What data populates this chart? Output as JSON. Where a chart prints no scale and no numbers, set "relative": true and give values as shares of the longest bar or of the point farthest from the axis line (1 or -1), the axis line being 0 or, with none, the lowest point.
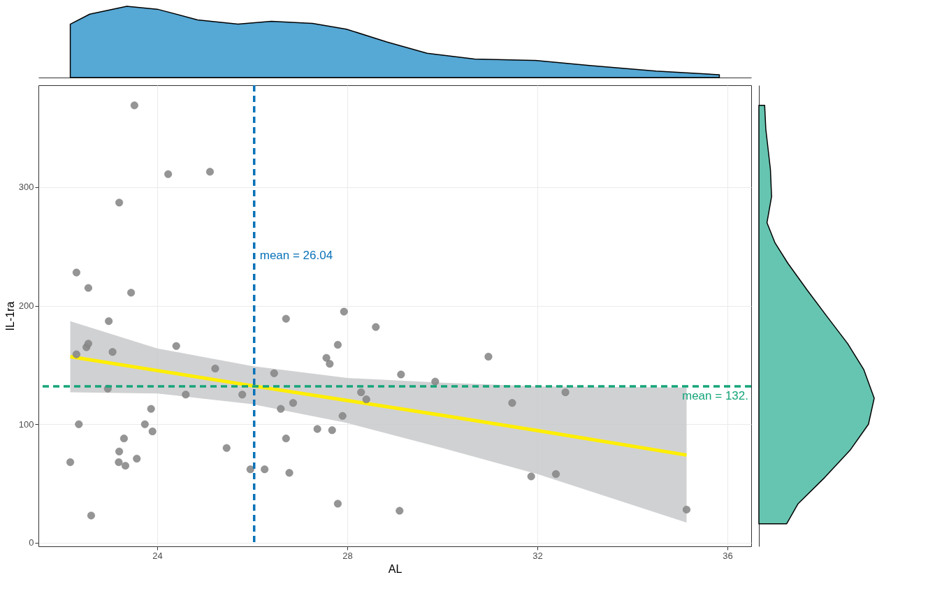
{
  "chart_data": [
    {
      "type": "area",
      "relative": true,
      "color": "#56a8d5",
      "xlim": [
        21.5,
        36.5
      ],
      "xticks": [
        24,
        28,
        32,
        36
      ],
      "tick_labels": false,
      "x": [
        22.17,
        22.58,
        23.36,
        24,
        24.85,
        25.7,
        26.4,
        27.27,
        27.98,
        28.83,
        29.68,
        30.68,
        31.96,
        33.1,
        34.5,
        35.83
      ],
      "values": [
        0.75,
        0.89,
        1.0,
        0.96,
        0.81,
        0.75,
        0.79,
        0.76,
        0.68,
        0.5,
        0.34,
        0.26,
        0.24,
        0.17,
        0.09,
        0.04
      ]
    },
    {
      "type": "scatter",
      "xlabel": "AL",
      "ylabel": "IL-1ra",
      "xlim": [
        21.5,
        36.5
      ],
      "ylim": [
        -3,
        386
      ],
      "xticks": [
        24,
        28,
        32,
        36
      ],
      "yticks": [
        0,
        100,
        200,
        300
      ],
      "grid": true,
      "series": [
        {
          "color": "#8a8a8a",
          "marker": "circle",
          "x": [
            23.52,
            24.23,
            25.11,
            23.2,
            22.3,
            22.55,
            23.45,
            27.93,
            26.71,
            22.98,
            28.6,
            22.3,
            22.51,
            22.55,
            23.06,
            24.4,
            27.8,
            30.97,
            27.56,
            27.63,
            25.22,
            26.46,
            29.13,
            29.85,
            22.96,
            24.6,
            25.79,
            28.29,
            32.59,
            28.4,
            26.86,
            31.47,
            23.87,
            26.6,
            27.9,
            23.74,
            22.35,
            23.9,
            27.37,
            27.68,
            23.3,
            26.71,
            25.46,
            23.2,
            23.57,
            22.17,
            23.19,
            23.33,
            25.96,
            26.26,
            26.78,
            31.87,
            32.39,
            27.8,
            29.1,
            22.61,
            35.14
          ],
          "values": [
            369,
            311,
            313,
            287,
            228,
            215,
            211,
            195,
            189,
            187,
            182,
            159,
            165,
            168,
            161,
            166,
            167,
            157,
            156,
            151,
            147,
            143,
            142,
            136,
            130,
            125,
            125,
            127,
            127,
            121,
            118,
            118,
            113,
            113,
            107,
            100,
            100,
            94,
            96,
            95,
            88,
            88,
            80,
            77,
            71,
            68,
            68,
            65,
            62,
            62,
            59,
            56,
            58,
            33,
            27,
            23,
            28
          ]
        },
        {
          "type": "line",
          "color": "#ffee00",
          "x": [
            22.17,
            24,
            26,
            28,
            30,
            32,
            35.14
          ],
          "values": [
            157,
            145.3,
            132.5,
            120,
            107.5,
            94.7,
            74
          ],
          "lower": [
            127,
            126,
            117,
            101,
            80,
            58,
            17
          ],
          "upper": [
            187,
            164,
            149,
            139,
            135,
            132,
            131
          ]
        }
      ],
      "ref_lines": [
        {
          "axis": "x",
          "value": 26.04,
          "label": "mean = 26.04",
          "color": "#0a72b8",
          "line_style": "dashed"
        },
        {
          "axis": "y",
          "value": 132,
          "label": "mean = 132.",
          "color": "#16a57a",
          "line_style": "dashed"
        }
      ]
    },
    {
      "type": "area",
      "relative": true,
      "orientation": "horizontal",
      "color": "#66c5b0",
      "ylim": [
        -3,
        386
      ],
      "yticks": [
        0,
        100,
        200,
        300
      ],
      "tick_labels": false,
      "x": [
        369,
        349,
        315,
        292,
        270,
        253,
        236,
        213,
        191,
        168,
        146,
        122,
        100,
        78,
        55,
        33,
        16
      ],
      "values": [
        0.05,
        0.06,
        0.1,
        0.11,
        0.07,
        0.14,
        0.25,
        0.42,
        0.59,
        0.77,
        0.91,
        1.0,
        0.95,
        0.79,
        0.57,
        0.34,
        0.24
      ]
    }
  ]
}
